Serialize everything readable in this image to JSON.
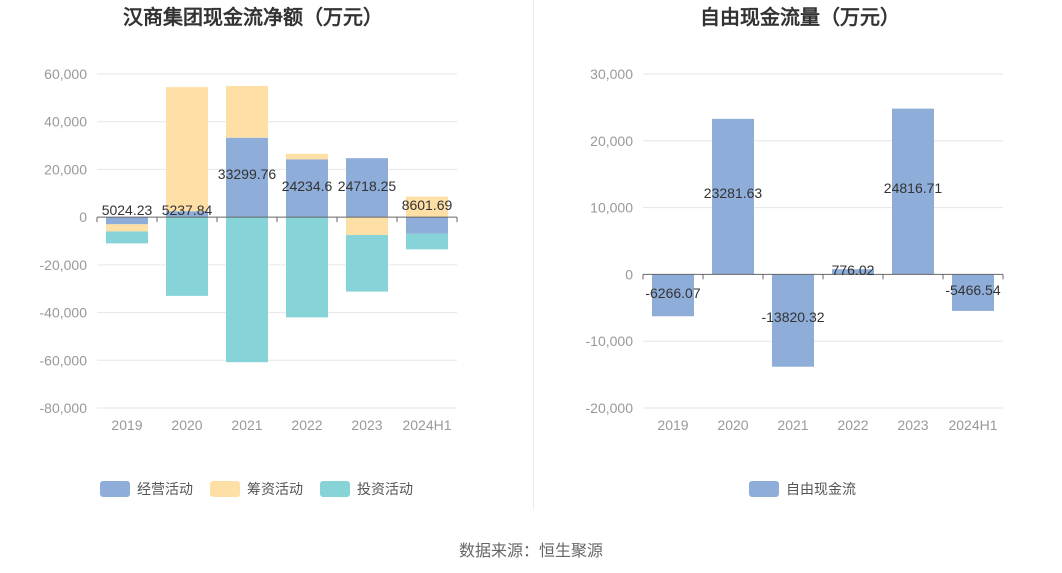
{
  "source_note": "数据来源：恒生聚源",
  "chart_data": [
    {
      "type": "bar",
      "stacked": true,
      "title": "汉商集团现金流净额（万元）",
      "categories": [
        "2019",
        "2020",
        "2021",
        "2022",
        "2023",
        "2024H1"
      ],
      "ylim": [
        -80000,
        60000
      ],
      "yticks": [
        "60,000",
        "40,000",
        "20,000",
        "0",
        "-20,000",
        "-40,000",
        "-60,000",
        "-80,000"
      ],
      "ytick_values": [
        60000,
        40000,
        20000,
        0,
        -20000,
        -40000,
        -60000,
        -80000
      ],
      "grid": true,
      "legend_position": "bottom",
      "series": [
        {
          "name": "经营活动",
          "color": "#8eadd9",
          "values": [
            -3000,
            2500,
            33299.76,
            24234.6,
            24718.25,
            -7000
          ]
        },
        {
          "name": "筹资活动",
          "color": "#fedfa6",
          "values": [
            -3000,
            52000,
            21700,
            2300,
            -7500,
            8601.69
          ]
        },
        {
          "name": "投资活动",
          "color": "#86d4d8",
          "values": [
            -5000,
            -33000,
            -60800,
            -42000,
            -23700,
            -6500
          ]
        }
      ],
      "data_labels": [
        "5024.23",
        "5237.84",
        "33299.76",
        "24234.6",
        "24718.25",
        "8601.69"
      ]
    },
    {
      "type": "bar",
      "title": "自由现金流量（万元）",
      "categories": [
        "2019",
        "2020",
        "2021",
        "2022",
        "2023",
        "2024H1"
      ],
      "ylim": [
        -20000,
        30000
      ],
      "yticks": [
        "30,000",
        "20,000",
        "10,000",
        "0",
        "-10,000",
        "-20,000"
      ],
      "ytick_values": [
        30000,
        20000,
        10000,
        0,
        -10000,
        -20000
      ],
      "grid": true,
      "legend_position": "bottom",
      "series": [
        {
          "name": "自由现金流",
          "color": "#8eadd9",
          "values": [
            -6266.07,
            23281.63,
            -13820.32,
            776.02,
            24816.71,
            -5466.54
          ]
        }
      ],
      "data_labels": [
        "-6266.07",
        "23281.63",
        "-13820.32",
        "776.02",
        "24816.71",
        "-5466.54"
      ]
    }
  ]
}
